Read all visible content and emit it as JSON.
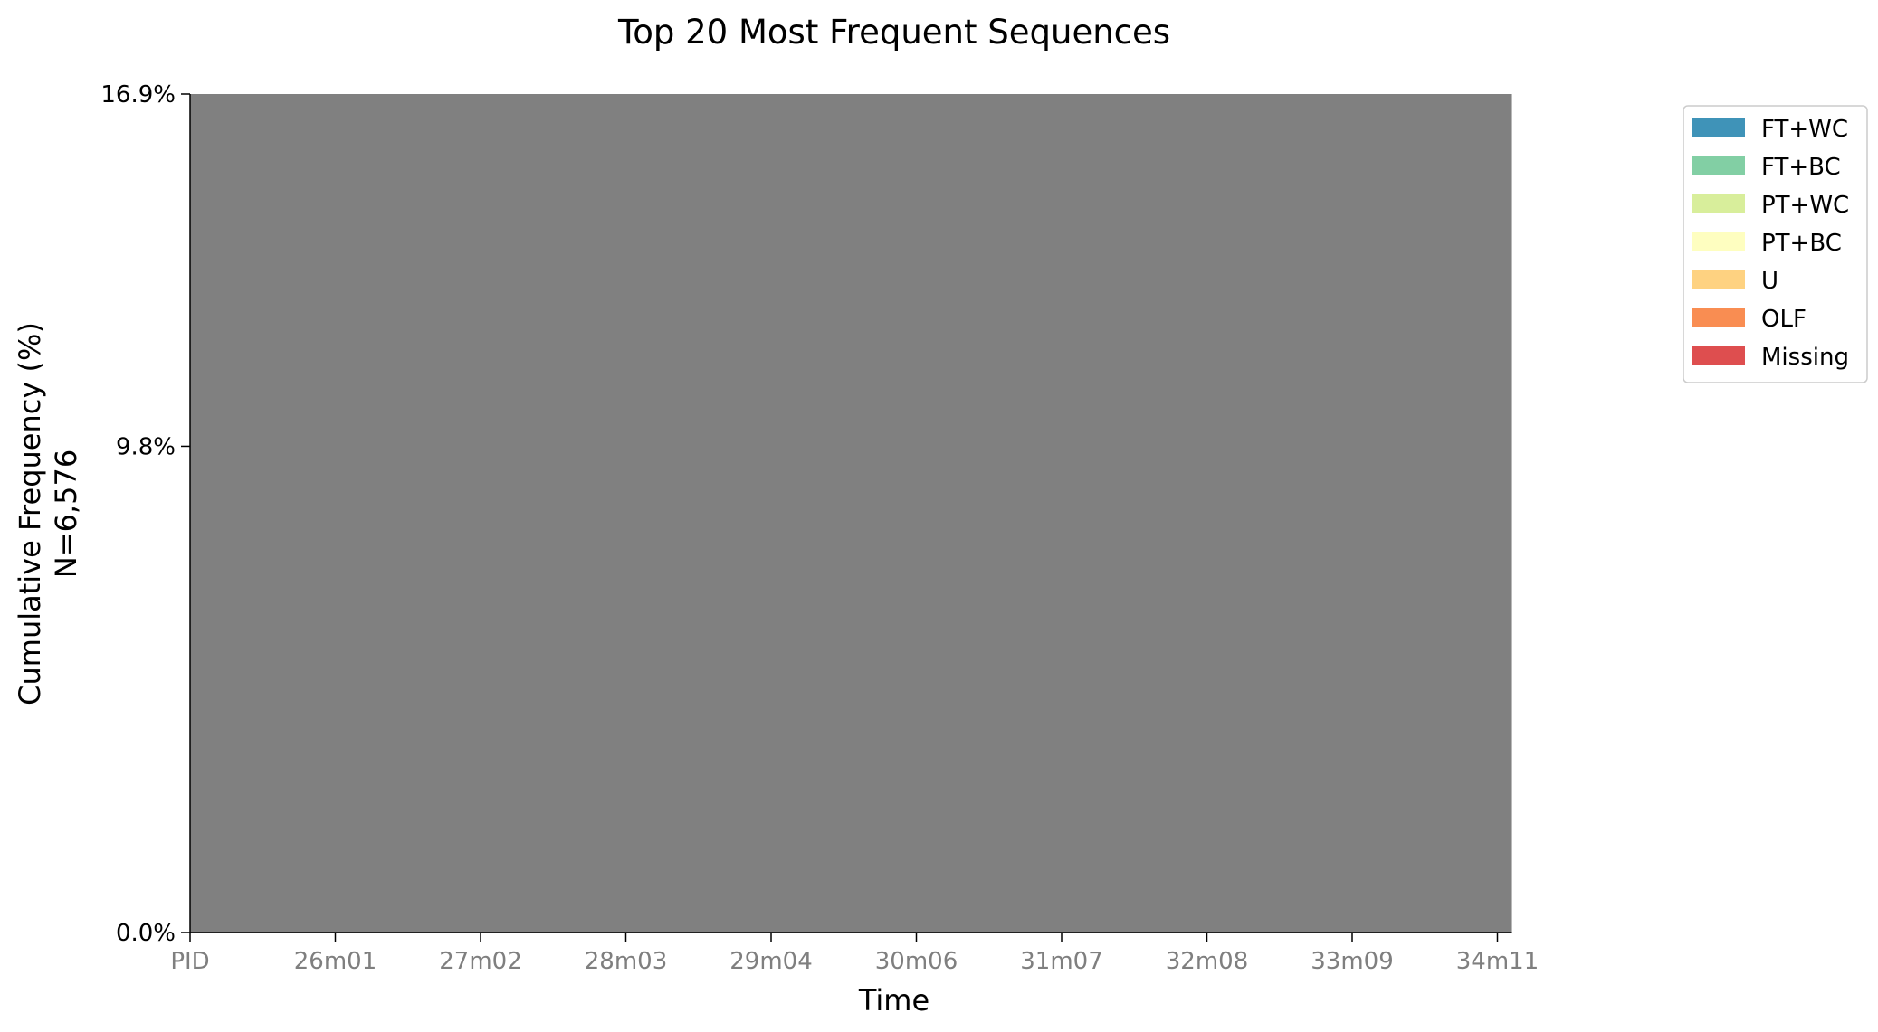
{
  "chart_data": {
    "type": "area",
    "title": "Top 20 Most Frequent Sequences",
    "xlabel": "Time",
    "ylabel": "Cumulative Frequency (%)",
    "ylabel_sub": "N=6,576",
    "x_ticks": [
      "PID",
      "26m01",
      "27m02",
      "28m03",
      "29m04",
      "30m06",
      "31m07",
      "32m08",
      "33m09",
      "34m11"
    ],
    "y_ticks": [
      "0.0%",
      "9.8%",
      "16.9%"
    ],
    "y_tick_values": [
      0.0,
      9.8,
      16.9
    ],
    "ylim": [
      0,
      16.9
    ],
    "x_range": [
      0,
      9.1
    ],
    "fill": {
      "color": "#808080",
      "x_start": 0,
      "x_end": 9.1,
      "y_bottom": 0,
      "y_top": 16.9
    },
    "legend_position": "upper-right-outside",
    "legend": [
      {
        "label": "FT+WC",
        "color": "#3f93b8"
      },
      {
        "label": "FT+BC",
        "color": "#82cfa4"
      },
      {
        "label": "PT+WC",
        "color": "#d8ee9b"
      },
      {
        "label": "PT+BC",
        "color": "#fefec0"
      },
      {
        "label": "U",
        "color": "#fed281"
      },
      {
        "label": "OLF",
        "color": "#f98d52"
      },
      {
        "label": "Missing",
        "color": "#de4e4f"
      }
    ],
    "grid": false
  }
}
